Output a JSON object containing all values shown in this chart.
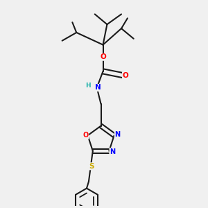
{
  "background_color": "#f0f0f0",
  "bond_color": "#1a1a1a",
  "figsize": [
    3.0,
    3.0
  ],
  "dpi": 100,
  "atom_colors": {
    "O": "#ff0000",
    "N": "#0000ff",
    "S": "#ccaa00",
    "H": "#20b2aa",
    "C": "#1a1a1a"
  }
}
